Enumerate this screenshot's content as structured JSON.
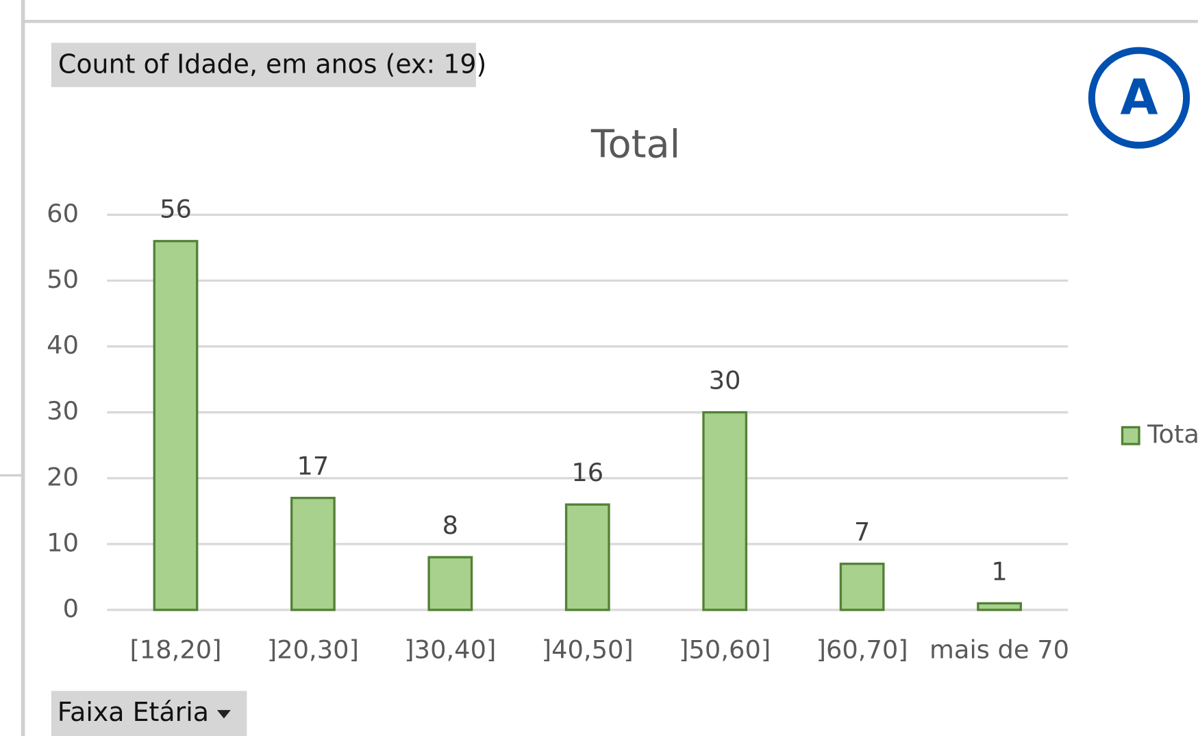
{
  "chart_data": {
    "type": "bar",
    "title": "Total",
    "categories": [
      "[18,20]",
      "]20,30]",
      "]30,40]",
      "]40,50]",
      "]50,60]",
      "]60,70]",
      "mais de 70"
    ],
    "series": [
      {
        "name": "Total",
        "color": "#a9d18e",
        "values": [
          56,
          17,
          8,
          16,
          30,
          7,
          1
        ]
      }
    ],
    "ylim": [
      0,
      60
    ],
    "yticks": [
      0,
      10,
      20,
      30,
      40,
      50,
      60
    ],
    "grid": true,
    "legend": "right",
    "value_field_button": "Count of Idade, em anos (ex: 19)",
    "axis_field_button": "Faixa Etária",
    "annotation": "A"
  }
}
